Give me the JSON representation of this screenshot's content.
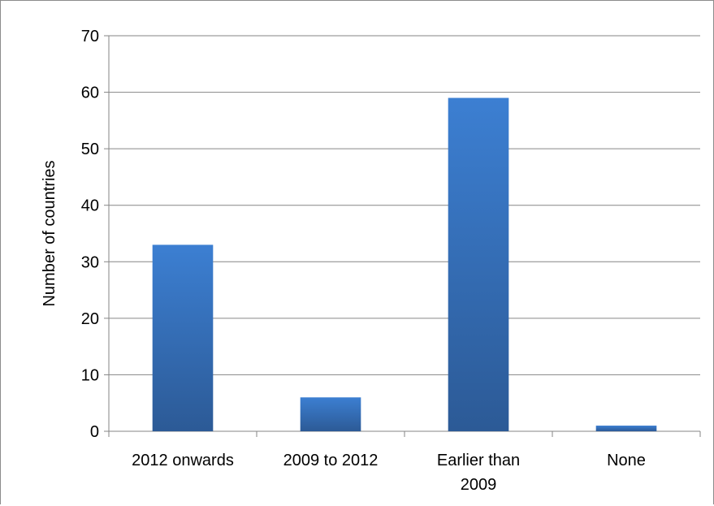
{
  "chart_data": {
    "type": "bar",
    "title": "",
    "xlabel": "",
    "ylabel": "Number of countries",
    "categories": [
      "2012 onwards",
      "2009 to 2012",
      "Earlier than 2009",
      "None"
    ],
    "category_label_lines": [
      [
        "2012 onwards"
      ],
      [
        "2009 to 2012"
      ],
      [
        "Earlier than",
        "2009"
      ],
      [
        "None"
      ]
    ],
    "values": [
      33,
      6,
      59,
      1
    ],
    "ylim": [
      0,
      70
    ],
    "yticks": [
      0,
      10,
      20,
      30,
      40,
      50,
      60,
      70
    ],
    "grid": true,
    "legend": "none",
    "colors": {
      "bar_top": "#3c7fd2",
      "bar_bottom": "#2c5a96",
      "gridline": "#868686",
      "axis": "#868686"
    }
  }
}
